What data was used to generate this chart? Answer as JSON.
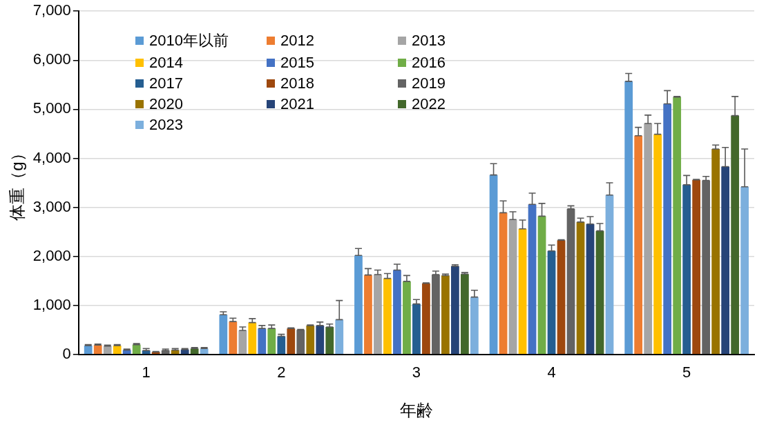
{
  "chart_data": {
    "type": "bar",
    "xlabel": "年齢",
    "ylabel": "体重（g）",
    "categories": [
      "1",
      "2",
      "3",
      "4",
      "5"
    ],
    "ylim": [
      0,
      7000
    ],
    "yticks": [
      {
        "value": 0,
        "label": "0"
      },
      {
        "value": 1000,
        "label": "1,000"
      },
      {
        "value": 2000,
        "label": "2,000"
      },
      {
        "value": 3000,
        "label": "3,000"
      },
      {
        "value": 4000,
        "label": "4,000"
      },
      {
        "value": 5000,
        "label": "5,000"
      },
      {
        "value": 6000,
        "label": "6,000"
      },
      {
        "value": 7000,
        "label": "7,000"
      }
    ],
    "grid": "y",
    "legend": "top left",
    "series": [
      {
        "name": "2010年以前",
        "color": "#5b9bd5",
        "values": [
          180,
          810,
          2020,
          3660,
          5570
        ],
        "errors": [
          [
            180,
            200
          ],
          [
            810,
            870
          ],
          [
            2020,
            2160
          ],
          [
            3660,
            3890
          ],
          [
            5570,
            5730
          ]
        ]
      },
      {
        "name": "2012",
        "color": "#ed7d31",
        "values": [
          190,
          670,
          1620,
          2890,
          4460
        ],
        "errors": [
          [
            190,
            210
          ],
          [
            670,
            740
          ],
          [
            1620,
            1750
          ],
          [
            2890,
            3130
          ],
          [
            4460,
            4630
          ]
        ]
      },
      {
        "name": "2013",
        "color": "#a5a5a5",
        "values": [
          170,
          490,
          1630,
          2750,
          4710
        ],
        "errors": [
          [
            170,
            190
          ],
          [
            490,
            560
          ],
          [
            1630,
            1720
          ],
          [
            2750,
            2910
          ],
          [
            4710,
            4880
          ]
        ]
      },
      {
        "name": "2014",
        "color": "#ffc000",
        "values": [
          180,
          650,
          1550,
          2560,
          4490
        ],
        "errors": [
          [
            180,
            200
          ],
          [
            650,
            730
          ],
          [
            1550,
            1650
          ],
          [
            2560,
            2740
          ],
          [
            4490,
            4710
          ]
        ]
      },
      {
        "name": "2015",
        "color": "#4472c4",
        "values": [
          90,
          530,
          1720,
          3060,
          5110
        ],
        "errors": [
          [
            90,
            110
          ],
          [
            530,
            590
          ],
          [
            1720,
            1840
          ],
          [
            3060,
            3290
          ],
          [
            5110,
            5380
          ]
        ]
      },
      {
        "name": "2016",
        "color": "#70ad47",
        "values": [
          200,
          530,
          1490,
          2820,
          5250
        ],
        "errors": [
          [
            200,
            220
          ],
          [
            530,
            600
          ],
          [
            1490,
            1610
          ],
          [
            2820,
            3080
          ],
          [
            5250,
            5260
          ]
        ]
      },
      {
        "name": "2017",
        "color": "#255e91",
        "values": [
          80,
          370,
          1030,
          2110,
          3460
        ],
        "errors": [
          [
            80,
            120
          ],
          [
            370,
            410
          ],
          [
            1030,
            1120
          ],
          [
            2110,
            2230
          ],
          [
            3460,
            3650
          ]
        ]
      },
      {
        "name": "2018",
        "color": "#9e480e",
        "values": [
          50,
          530,
          1450,
          2330,
          3560
        ],
        "errors": [
          [
            50,
            60
          ],
          [
            530,
            540
          ],
          [
            1450,
            1460
          ],
          [
            2330,
            2340
          ],
          [
            3560,
            3570
          ]
        ]
      },
      {
        "name": "2019",
        "color": "#636363",
        "values": [
          80,
          500,
          1630,
          2970,
          3550
        ],
        "errors": [
          [
            80,
            110
          ],
          [
            500,
            510
          ],
          [
            1630,
            1700
          ],
          [
            2970,
            3030
          ],
          [
            3550,
            3630
          ]
        ]
      },
      {
        "name": "2020",
        "color": "#997300",
        "values": [
          90,
          590,
          1610,
          2700,
          4190
        ],
        "errors": [
          [
            90,
            120
          ],
          [
            590,
            600
          ],
          [
            1610,
            1640
          ],
          [
            2700,
            2780
          ],
          [
            4190,
            4270
          ]
        ]
      },
      {
        "name": "2021",
        "color": "#264478",
        "values": [
          100,
          590,
          1800,
          2660,
          3830
        ],
        "errors": [
          [
            100,
            120
          ],
          [
            590,
            660
          ],
          [
            1800,
            1830
          ],
          [
            2660,
            2810
          ],
          [
            3830,
            4220
          ]
        ]
      },
      {
        "name": "2022",
        "color": "#43682b",
        "values": [
          120,
          560,
          1640,
          2520,
          4870
        ],
        "errors": [
          [
            120,
            140
          ],
          [
            560,
            620
          ],
          [
            1640,
            1670
          ],
          [
            2520,
            2670
          ],
          [
            4870,
            5260
          ]
        ]
      },
      {
        "name": "2023",
        "color": "#7cafdd",
        "values": [
          120,
          710,
          1170,
          3250,
          3420
        ],
        "errors": [
          [
            120,
            140
          ],
          [
            710,
            1100
          ],
          [
            1170,
            1310
          ],
          [
            3250,
            3500
          ],
          [
            3420,
            4190
          ]
        ]
      }
    ]
  }
}
